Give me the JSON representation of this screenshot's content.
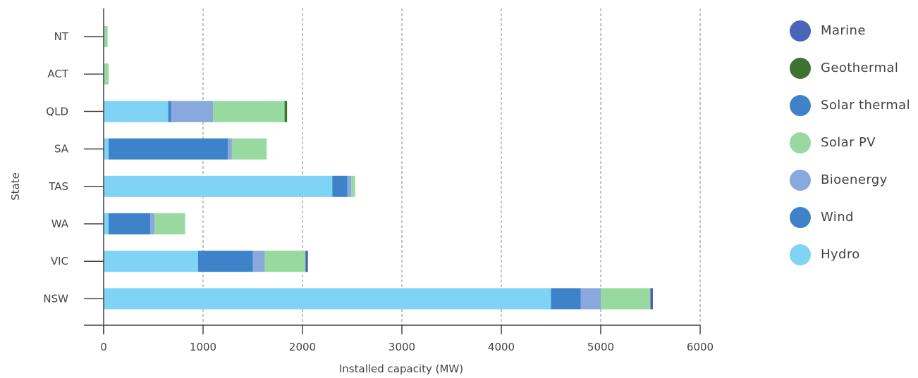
{
  "chart_data": {
    "type": "bar",
    "orientation": "horizontal",
    "stacked": true,
    "xlabel": "Installed capacity (MW)",
    "ylabel": "State",
    "xlim": [
      0,
      6000
    ],
    "xticks": [
      0,
      1000,
      2000,
      3000,
      4000,
      5000,
      6000
    ],
    "grid": "vertical dashed",
    "legend_position": "right",
    "categories": [
      "NSW",
      "VIC",
      "WA",
      "TAS",
      "SA",
      "QLD",
      "ACT",
      "NT"
    ],
    "series": [
      {
        "name": "Hydro",
        "color": "#7FD3F5",
        "values": [
          4500,
          950,
          50,
          2300,
          50,
          650,
          0,
          0
        ]
      },
      {
        "name": "Wind",
        "color": "#3E83C9",
        "values": [
          300,
          550,
          420,
          150,
          1200,
          30,
          0,
          0
        ]
      },
      {
        "name": "Bioenergy",
        "color": "#88A8DE",
        "values": [
          200,
          120,
          40,
          40,
          40,
          420,
          0,
          0
        ]
      },
      {
        "name": "Solar PV",
        "color": "#98D9A0",
        "values": [
          500,
          410,
          310,
          40,
          350,
          720,
          50,
          40
        ]
      },
      {
        "name": "Solar thermal",
        "color": "#3E83C9",
        "values": [
          0,
          0,
          0,
          0,
          0,
          0,
          0,
          0
        ]
      },
      {
        "name": "Geothermal",
        "color": "#3D7330",
        "values": [
          0,
          0,
          0,
          0,
          0,
          25,
          0,
          0
        ]
      },
      {
        "name": "Marine",
        "color": "#4A64B8",
        "values": [
          25,
          25,
          0,
          0,
          0,
          0,
          0,
          0
        ]
      }
    ],
    "legend_order": [
      "Marine",
      "Geothermal",
      "Solar thermal",
      "Solar PV",
      "Bioenergy",
      "Wind",
      "Hydro"
    ]
  }
}
